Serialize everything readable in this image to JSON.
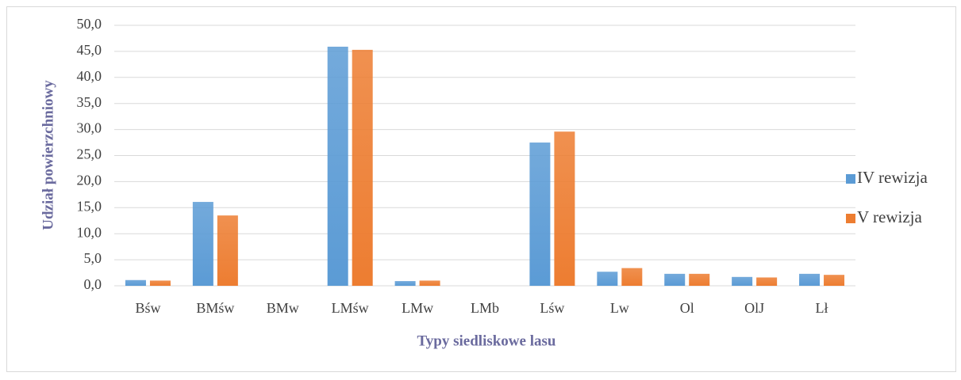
{
  "chart_data": {
    "type": "bar",
    "x_label": "Typy siedliskowe lasu",
    "y_label": "Udział powierzchniowy",
    "categories": [
      "Bśw",
      "BMśw",
      "BMw",
      "LMśw",
      "LMw",
      "LMb",
      "Lśw",
      "Lw",
      "Ol",
      "OlJ",
      "Lł"
    ],
    "series": [
      {
        "name": "IV rewizja",
        "color": "#5b9bd5",
        "values": [
          1.1,
          16.1,
          0,
          45.9,
          0.9,
          0,
          27.5,
          2.7,
          2.3,
          1.7,
          2.3
        ]
      },
      {
        "name": "V rewizja",
        "color": "#ed7d31",
        "values": [
          1.0,
          13.5,
          0,
          45.3,
          1.0,
          0,
          29.6,
          3.4,
          2.3,
          1.6,
          2.1
        ]
      }
    ],
    "ylim": [
      0,
      50
    ],
    "yticks": [
      {
        "value": 0,
        "label": "0,0"
      },
      {
        "value": 5,
        "label": "5,0"
      },
      {
        "value": 10,
        "label": "10,0"
      },
      {
        "value": 15,
        "label": "15,0"
      },
      {
        "value": 20,
        "label": "20,0"
      },
      {
        "value": 25,
        "label": "25,0"
      },
      {
        "value": 30,
        "label": "30,0"
      },
      {
        "value": 35,
        "label": "35,0"
      },
      {
        "value": 40,
        "label": "40,0"
      },
      {
        "value": 45,
        "label": "45,0"
      },
      {
        "value": 50,
        "label": "50,0"
      }
    ],
    "grid": true,
    "legend": "right"
  }
}
